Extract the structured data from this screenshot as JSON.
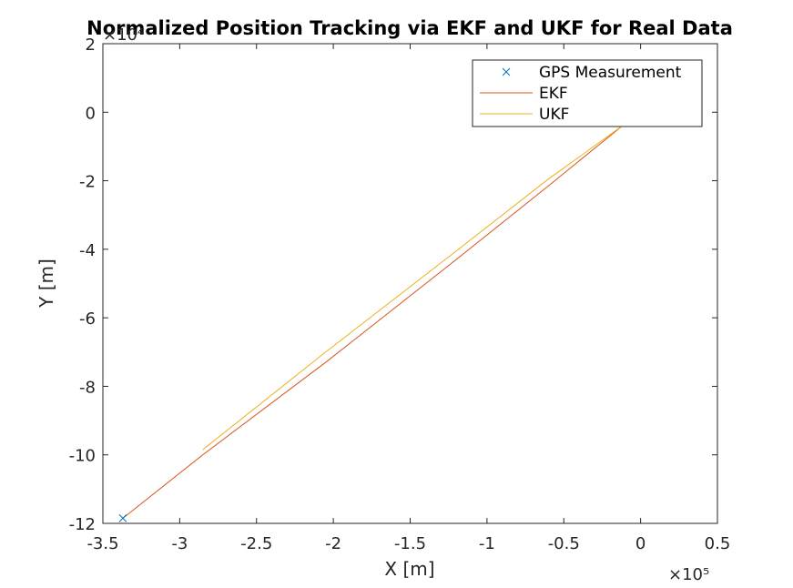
{
  "chart_data": {
    "type": "line",
    "title": "Normalized Position Tracking via EKF and UKF for Real Data",
    "xlabel": "X [m]",
    "ylabel": "Y [m]",
    "xlim": [
      -3.5,
      0.5
    ],
    "ylim": [
      -12,
      2
    ],
    "x_exponent_label": "×10⁵",
    "y_exponent_label": "×10⁴",
    "x_ticks": [
      "-3.5",
      "-3",
      "-2.5",
      "-2",
      "-1.5",
      "-1",
      "-0.5",
      "0",
      "0.5"
    ],
    "y_ticks": [
      "2",
      "0",
      "-2",
      "-4",
      "-6",
      "-8",
      "-10",
      "-12"
    ],
    "x_tick_values": [
      -3.5,
      -3,
      -2.5,
      -2,
      -1.5,
      -1,
      -0.5,
      0,
      0.5
    ],
    "y_tick_values": [
      2,
      0,
      -2,
      -4,
      -6,
      -8,
      -10,
      -12
    ],
    "legend_position": "top-right",
    "series": [
      {
        "name": "GPS Measurement",
        "marker": "x",
        "color": "#0072BD",
        "x": [
          -3.37
        ],
        "y": [
          -11.85
        ]
      },
      {
        "name": "EKF",
        "color": "#D95319",
        "x": [
          -3.37,
          -2.85,
          -2.05,
          -1.2,
          -0.6,
          -0.12
        ],
        "y": [
          -11.85,
          -10.0,
          -7.3,
          -4.3,
          -2.15,
          -0.4
        ]
      },
      {
        "name": "UKF",
        "color": "#EDB120",
        "x": [
          -2.85,
          -2.05,
          -1.2,
          -0.6,
          -0.12
        ],
        "y": [
          -9.85,
          -7.0,
          -4.05,
          -1.95,
          -0.4
        ]
      }
    ]
  }
}
